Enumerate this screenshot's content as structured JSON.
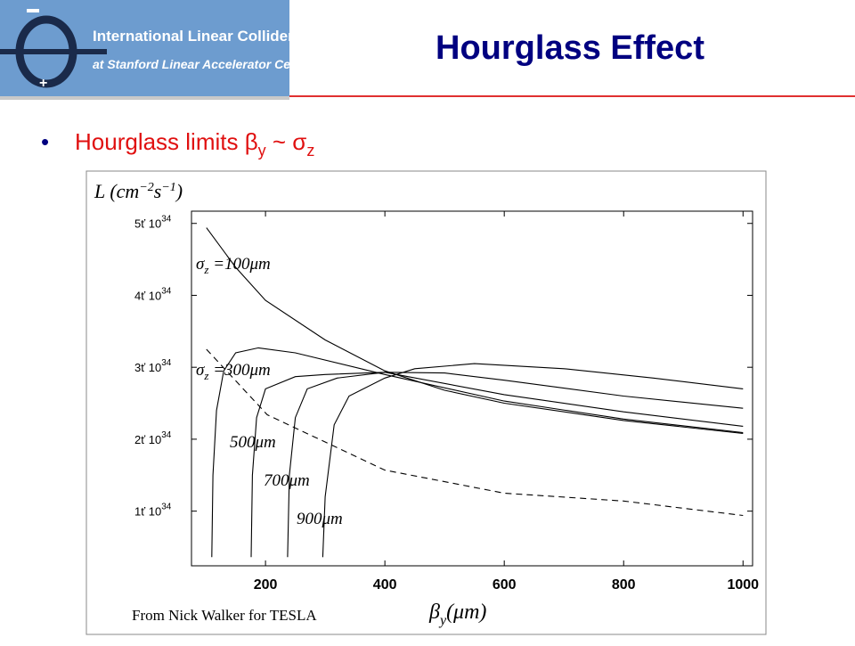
{
  "logo": {
    "line1": "International Linear Collider",
    "line2": "at Stanford Linear Accelerator Center"
  },
  "slide_title": "Hourglass Effect",
  "bullet": [
    "Hourglass limits β",
    "y",
    " ~ σ",
    "z"
  ],
  "chart_data": {
    "type": "line",
    "ylabel": [
      "L (cm",
      "−2",
      "s",
      "−1",
      ")"
    ],
    "xlabel": [
      "β",
      "y",
      "(μm)"
    ],
    "source": "From Nick Walker for TESLA",
    "xlim": [
      76,
      1016
    ],
    "xticks": [
      200,
      400,
      600,
      800,
      1000
    ],
    "ylim": [
      2.4e+33,
      5.17e+34
    ],
    "yticks": [
      {
        "value": 1e+34,
        "label": "1ť 10",
        "exponent": "34"
      },
      {
        "value": 2e+34,
        "label": "2ť 10",
        "exponent": "34"
      },
      {
        "value": 3e+34,
        "label": "3ť 10",
        "exponent": "34"
      },
      {
        "value": 4e+34,
        "label": "4ť 10",
        "exponent": "34"
      },
      {
        "value": 5e+34,
        "label": "5ť 10",
        "exponent": "34"
      }
    ],
    "color": "#000000",
    "series": [
      {
        "x": [
          101,
          150,
          200,
          300,
          400,
          500,
          600,
          800,
          1000
        ],
        "values": [
          4.94e+34,
          4.39e+34,
          3.93e+34,
          3.38e+34,
          2.95e+34,
          2.68e+34,
          2.5e+34,
          2.26e+34,
          2.08e+34
        ]
      },
      {
        "x": [
          110,
          112,
          118,
          130,
          150,
          188,
          250,
          400,
          600,
          800,
          1000
        ],
        "values": [
          3.6e+33,
          1.5e+34,
          2.4e+34,
          2.95e+34,
          3.2e+34,
          3.27e+34,
          3.2e+34,
          2.9e+34,
          2.53e+34,
          2.28e+34,
          2.09e+34
        ]
      },
      {
        "x": [
          176,
          178,
          185,
          200,
          250,
          300,
          400,
          600,
          800,
          1000
        ],
        "values": [
          3.6e+33,
          1.5e+34,
          2.3e+34,
          2.7e+34,
          2.87e+34,
          2.9e+34,
          2.93e+34,
          2.62e+34,
          2.38e+34,
          2.18e+34
        ]
      },
      {
        "x": [
          237,
          240,
          250,
          270,
          320,
          400,
          500,
          600,
          800,
          1000
        ],
        "values": [
          3.6e+33,
          1.5e+34,
          2.3e+34,
          2.7e+34,
          2.85e+34,
          2.93e+34,
          2.92e+34,
          2.82e+34,
          2.6e+34,
          2.43e+34
        ]
      },
      {
        "x": [
          296,
          300,
          315,
          340,
          400,
          450,
          550,
          700,
          850,
          1000
        ],
        "values": [
          3.6e+33,
          1.2e+34,
          2.2e+34,
          2.6e+34,
          2.85e+34,
          2.98e+34,
          3.05e+34,
          2.98e+34,
          2.85e+34,
          2.7e+34
        ]
      },
      {
        "x": [
          101,
          203,
          400,
          600,
          800,
          1000
        ],
        "values": [
          3.25e+34,
          2.34e+34,
          1.57e+34,
          1.25e+34,
          1.14e+34,
          9.4e+33
        ],
        "dashed": true
      }
    ],
    "annotations": [
      [
        "σ",
        "z",
        " =100μm"
      ],
      [
        "σ",
        "z",
        " =300μm"
      ],
      [
        "500μm"
      ],
      [
        "700μm"
      ],
      [
        "900μm"
      ]
    ]
  }
}
